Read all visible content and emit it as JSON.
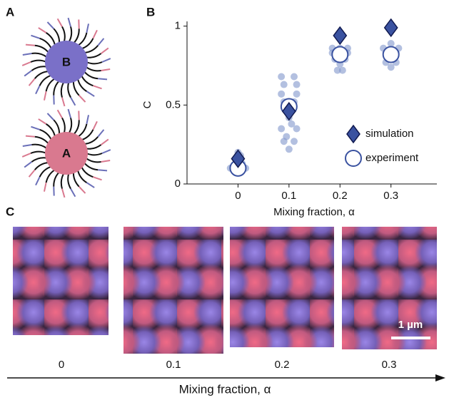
{
  "panels": {
    "a": "A",
    "b": "B",
    "c": "C"
  },
  "particles": [
    {
      "label": "B",
      "color": "#7a70c8"
    },
    {
      "label": "A",
      "color": "#d9798f"
    }
  ],
  "chart_data": {
    "type": "scatter",
    "y_label": "C",
    "x_label": "Mixing fraction, α",
    "xlim": [
      -0.1,
      0.39
    ],
    "xticks": [
      0,
      0.1,
      0.2,
      0.3
    ],
    "ylim": [
      0,
      1.03
    ],
    "yticks": [
      0,
      0.5,
      1
    ],
    "legend": "lower right",
    "series": [
      {
        "color": "#8196cc",
        "x": [
          -0.015,
          -0.01,
          -0.005,
          0,
          0.005,
          0.01,
          0.015,
          0,
          -0.008,
          0.008,
          0,
          0.005,
          0.085,
          0.09,
          0.11,
          0.115,
          0.085,
          0.115,
          0.09,
          0.11,
          0.1,
          0.085,
          0.115,
          0.09,
          0.11,
          0.1,
          0.095,
          0.105,
          0.185,
          0.19,
          0.2,
          0.21,
          0.215,
          0.19,
          0.21,
          0.2,
          0.185,
          0.215,
          0.195,
          0.205,
          0.285,
          0.29,
          0.3,
          0.31,
          0.315,
          0.29,
          0.31,
          0.3,
          0.3
        ],
        "values": [
          0.1,
          0.11,
          0.09,
          0.1,
          0.1,
          0.11,
          0.1,
          0.15,
          0.12,
          0.13,
          0.2,
          0.18,
          0.68,
          0.63,
          0.68,
          0.63,
          0.57,
          0.57,
          0.52,
          0.52,
          0.42,
          0.35,
          0.35,
          0.27,
          0.27,
          0.22,
          0.3,
          0.38,
          0.86,
          0.83,
          0.86,
          0.83,
          0.86,
          0.79,
          0.79,
          0.76,
          0.83,
          0.83,
          0.72,
          0.72,
          0.86,
          0.83,
          0.89,
          0.83,
          0.86,
          0.77,
          0.77,
          0.74,
          0.85
        ]
      },
      {
        "name": "experiment",
        "marker": "circle",
        "color": "#3a52a0",
        "x": [
          0,
          0.1,
          0.2,
          0.3
        ],
        "values": [
          0.1,
          0.49,
          0.82,
          0.82
        ]
      },
      {
        "name": "simulation",
        "marker": "diamond",
        "color": "#3a52a0",
        "x": [
          0,
          0.1,
          0.2,
          0.3
        ],
        "values": [
          0.16,
          0.46,
          0.94,
          0.99
        ]
      }
    ]
  },
  "micrographs": {
    "labels": [
      "0",
      "0.1",
      "0.2",
      "0.3"
    ],
    "scale_bar": "1 µm",
    "axis_label": "Mixing fraction, α"
  }
}
